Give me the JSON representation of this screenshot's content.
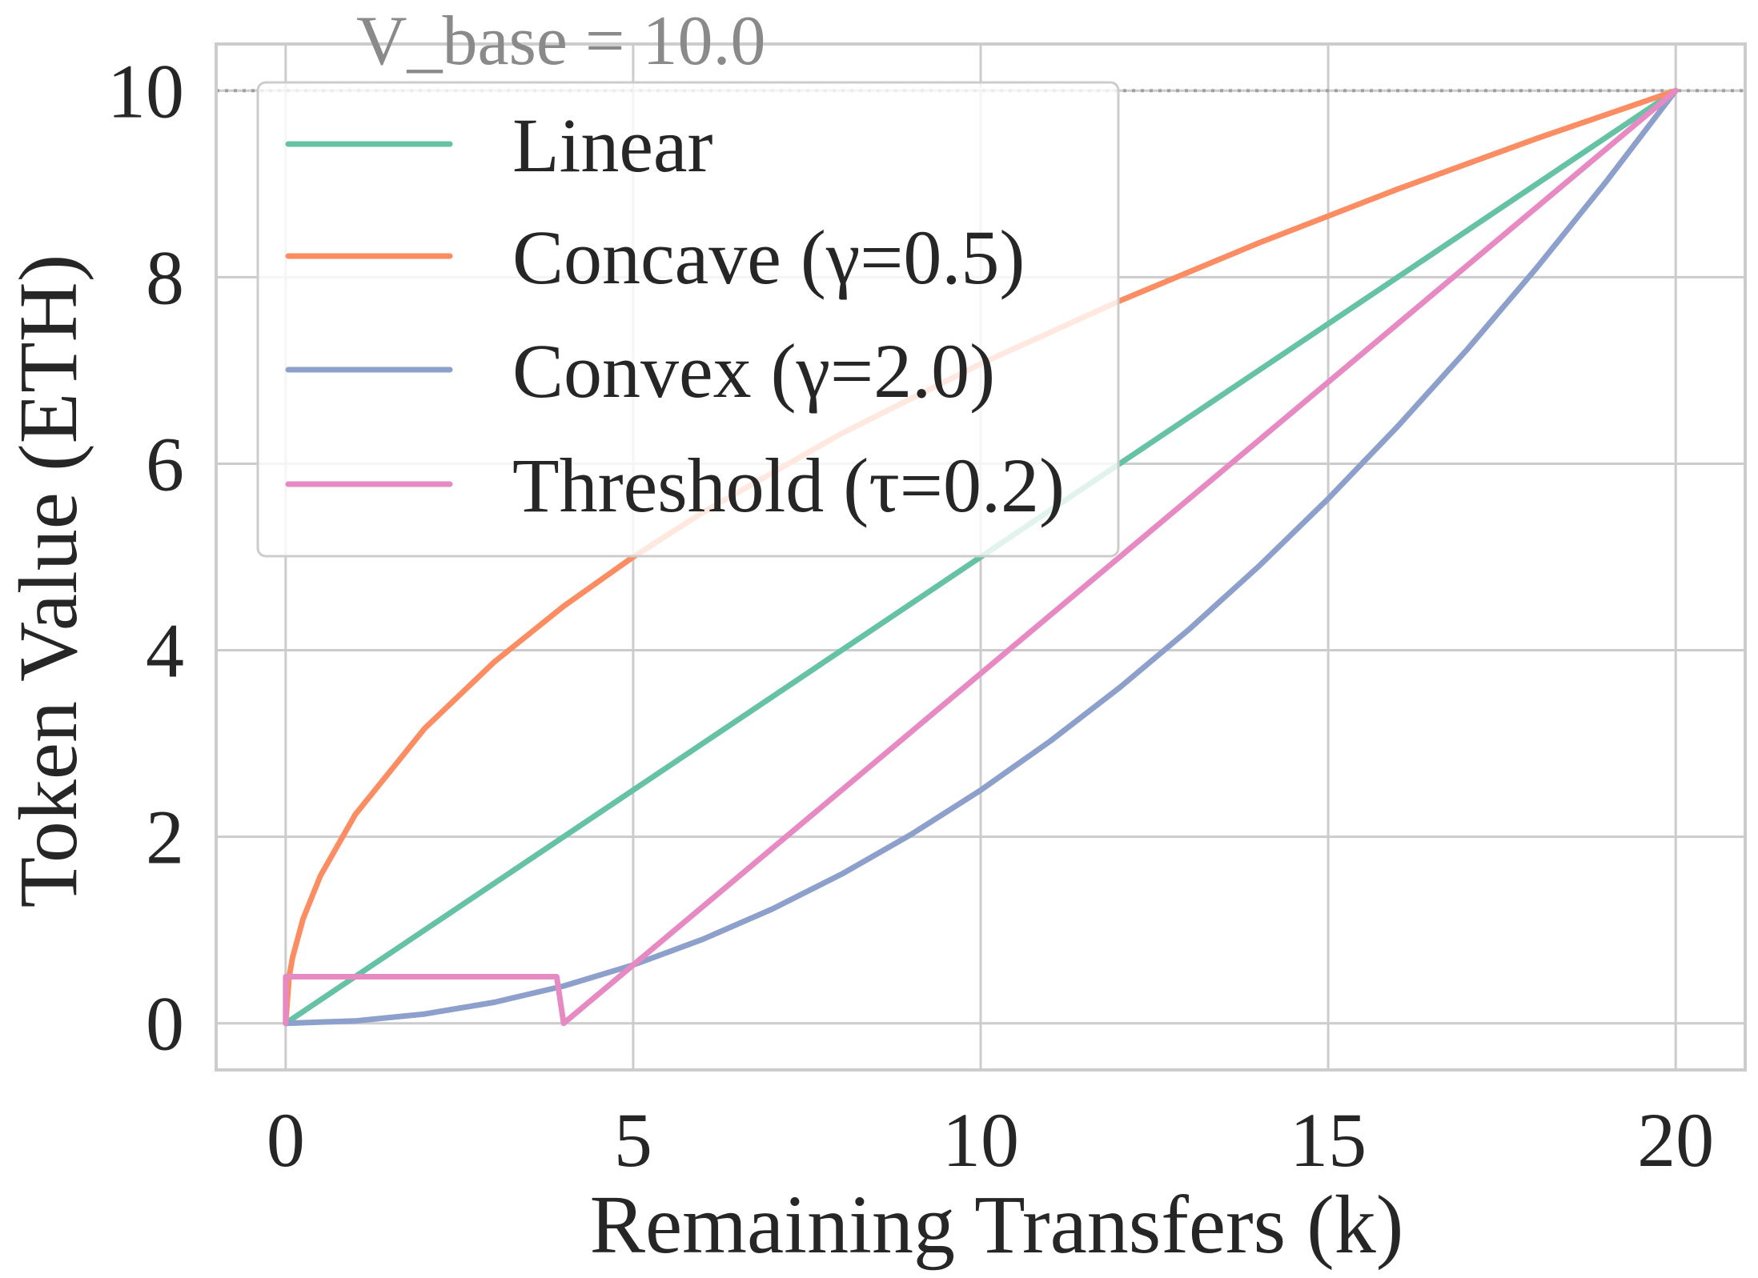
{
  "chart_data": {
    "type": "line",
    "xlabel": "Remaining Transfers (k)",
    "ylabel": "Token Value (ETH)",
    "xlim": [
      -1,
      21
    ],
    "ylim": [
      -0.5,
      10.5
    ],
    "xticks": [
      0,
      5,
      10,
      15,
      20
    ],
    "yticks": [
      0,
      2,
      4,
      6,
      8,
      10
    ],
    "grid": true,
    "legend_position": "top-left",
    "annotation": "V_base = 10.0",
    "reference_line": {
      "y": 10,
      "style": "dotted",
      "color": "#a0a0a0"
    },
    "series": [
      {
        "name": "Linear",
        "color": "#66c2a5",
        "x": [
          0,
          20
        ],
        "y": [
          0,
          10
        ]
      },
      {
        "name": "Concave (γ=0.5)",
        "color": "#fc8d62",
        "x": [
          0,
          0.05,
          0.1,
          0.25,
          0.5,
          1,
          2,
          3,
          4,
          5,
          6,
          8,
          10,
          12,
          14,
          16,
          18,
          20
        ],
        "y": [
          0,
          0.5,
          0.707,
          1.118,
          1.581,
          2.236,
          3.162,
          3.873,
          4.472,
          5.0,
          5.477,
          6.325,
          7.071,
          7.746,
          8.367,
          8.944,
          9.487,
          10.0
        ]
      },
      {
        "name": "Convex (γ=2.0)",
        "color": "#8da0cb",
        "x": [
          0,
          1,
          2,
          3,
          4,
          5,
          6,
          7,
          8,
          9,
          10,
          11,
          12,
          13,
          14,
          15,
          16,
          17,
          18,
          19,
          20
        ],
        "y": [
          0,
          0.025,
          0.1,
          0.225,
          0.4,
          0.625,
          0.9,
          1.225,
          1.6,
          2.025,
          2.5,
          3.025,
          3.6,
          4.225,
          4.9,
          5.625,
          6.4,
          7.225,
          8.1,
          9.025,
          10.0
        ]
      },
      {
        "name": "Threshold (τ=0.2)",
        "color": "#e78ac3",
        "x": [
          0,
          0.001,
          3.9,
          4.0,
          20
        ],
        "y": [
          0,
          0.5,
          0.5,
          0,
          10
        ]
      }
    ]
  }
}
